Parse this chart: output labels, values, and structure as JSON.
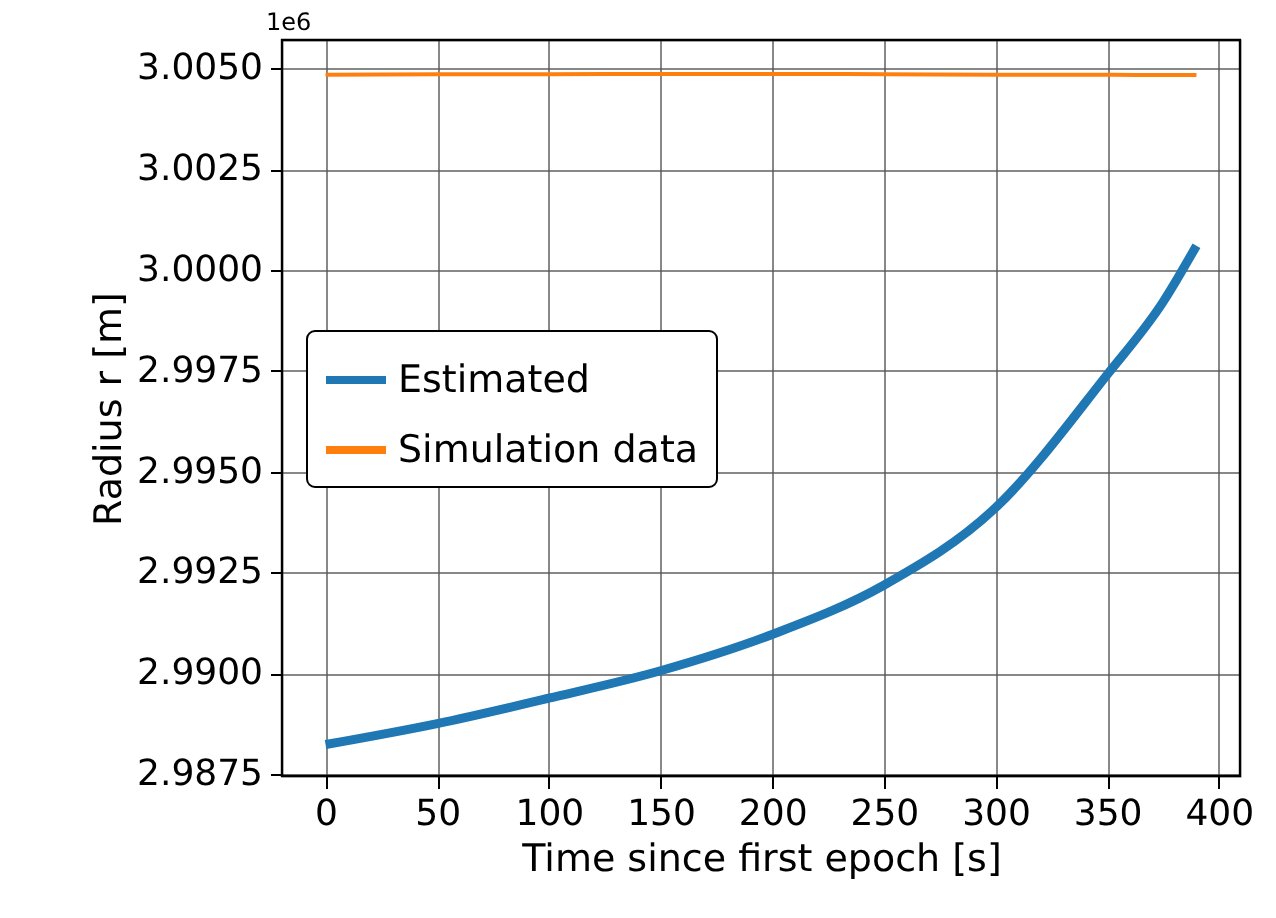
{
  "chart_data": {
    "type": "line",
    "xlabel": "Time since first epoch [s]",
    "ylabel": "Radius r [m]",
    "annotations": [
      "1e6"
    ],
    "x": [
      0,
      50,
      100,
      150,
      200,
      250,
      300,
      350,
      375,
      390
    ],
    "series": [
      {
        "name": "Estimated",
        "color": "#1f77b4",
        "values": [
          2.98823,
          2.98875,
          2.98938,
          2.99006,
          2.99096,
          2.99218,
          2.9941,
          2.9974,
          2.9992,
          3.0006
        ]
      },
      {
        "name": "Simulation data",
        "color": "#ff7f0e",
        "values": [
          3.00484,
          3.00485,
          3.00485,
          3.00486,
          3.00486,
          3.00485,
          3.00484,
          3.00484,
          3.00483,
          3.00483
        ]
      }
    ],
    "xlim": [
      -19.5,
      409.5
    ],
    "xticks": [
      0,
      50,
      100,
      150,
      200,
      250,
      300,
      350,
      400
    ],
    "ylim": [
      2.98745,
      3.0057
    ],
    "yticks": [
      {
        "value": 2.9875,
        "label": "2.9875"
      },
      {
        "value": 2.99,
        "label": "2.9900"
      },
      {
        "value": 2.9925,
        "label": "2.9925"
      },
      {
        "value": 2.995,
        "label": "2.9950"
      },
      {
        "value": 2.9975,
        "label": "2.9975"
      },
      {
        "value": 3.0,
        "label": "3.0000"
      },
      {
        "value": 3.0025,
        "label": "3.0025"
      },
      {
        "value": 3.005,
        "label": "3.0050"
      }
    ],
    "grid": true,
    "legend": "left",
    "marker": "none",
    "line_style": "solid"
  }
}
